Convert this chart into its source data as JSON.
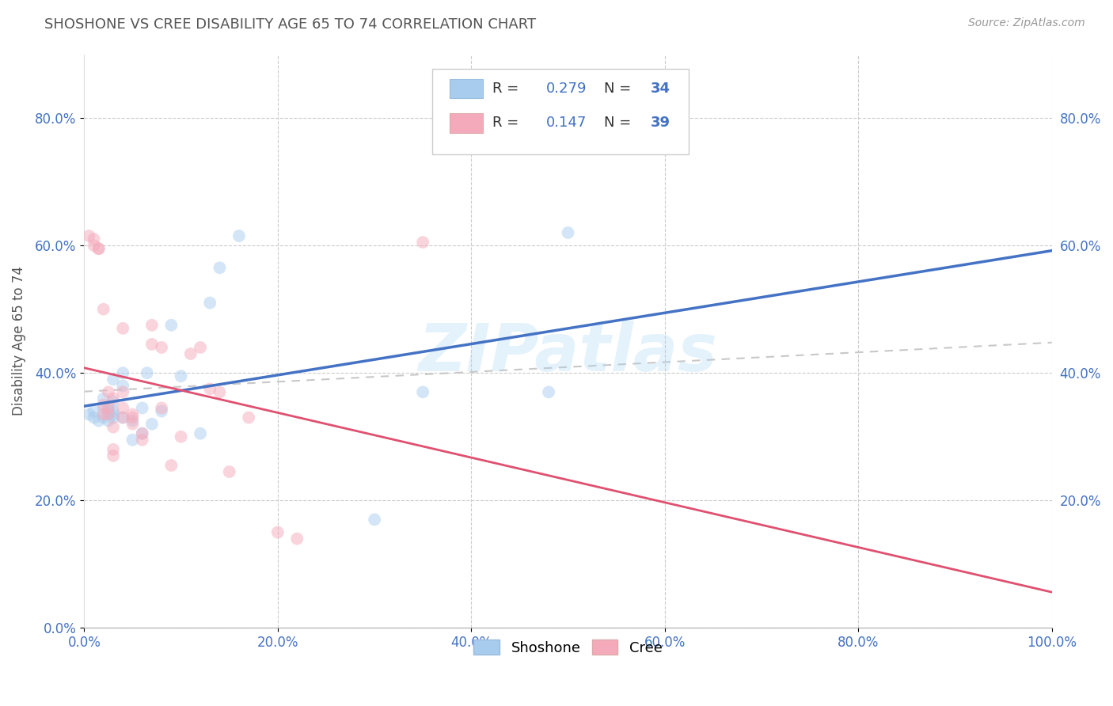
{
  "title": "SHOSHONE VS CREE DISABILITY AGE 65 TO 74 CORRELATION CHART",
  "source": "Source: ZipAtlas.com",
  "ylabel": "Disability Age 65 to 74",
  "xlim": [
    0.0,
    1.0
  ],
  "ylim": [
    0.0,
    0.9
  ],
  "xticks": [
    0.0,
    0.2,
    0.4,
    0.6,
    0.8,
    1.0
  ],
  "yticks": [
    0.0,
    0.2,
    0.4,
    0.6,
    0.8
  ],
  "shoshone_color": "#A8CCEE",
  "cree_color": "#F5AABB",
  "shoshone_line_color": "#4472C4",
  "cree_line_color": "#E05070",
  "trend_line_color": "#C8C8C8",
  "R_shoshone": 0.279,
  "N_shoshone": 34,
  "R_cree": 0.147,
  "N_cree": 39,
  "shoshone_x": [
    0.005,
    0.01,
    0.01,
    0.015,
    0.02,
    0.02,
    0.02,
    0.025,
    0.025,
    0.03,
    0.03,
    0.03,
    0.03,
    0.03,
    0.04,
    0.04,
    0.04,
    0.05,
    0.05,
    0.06,
    0.06,
    0.065,
    0.07,
    0.08,
    0.09,
    0.1,
    0.12,
    0.13,
    0.14,
    0.16,
    0.3,
    0.35,
    0.48,
    0.5
  ],
  "shoshone_y": [
    0.335,
    0.33,
    0.34,
    0.325,
    0.33,
    0.345,
    0.36,
    0.325,
    0.34,
    0.33,
    0.335,
    0.34,
    0.355,
    0.39,
    0.33,
    0.38,
    0.4,
    0.295,
    0.325,
    0.305,
    0.345,
    0.4,
    0.32,
    0.34,
    0.475,
    0.395,
    0.305,
    0.51,
    0.565,
    0.615,
    0.17,
    0.37,
    0.37,
    0.62
  ],
  "cree_x": [
    0.005,
    0.01,
    0.01,
    0.015,
    0.015,
    0.02,
    0.02,
    0.02,
    0.025,
    0.025,
    0.025,
    0.03,
    0.03,
    0.03,
    0.03,
    0.04,
    0.04,
    0.04,
    0.04,
    0.05,
    0.05,
    0.05,
    0.06,
    0.06,
    0.07,
    0.07,
    0.08,
    0.08,
    0.09,
    0.1,
    0.11,
    0.12,
    0.13,
    0.14,
    0.15,
    0.17,
    0.2,
    0.22,
    0.35
  ],
  "cree_y": [
    0.615,
    0.61,
    0.6,
    0.595,
    0.595,
    0.335,
    0.35,
    0.5,
    0.335,
    0.345,
    0.37,
    0.27,
    0.28,
    0.315,
    0.36,
    0.33,
    0.345,
    0.37,
    0.47,
    0.32,
    0.33,
    0.335,
    0.295,
    0.305,
    0.475,
    0.445,
    0.345,
    0.44,
    0.255,
    0.3,
    0.43,
    0.44,
    0.375,
    0.37,
    0.245,
    0.33,
    0.15,
    0.14,
    0.605
  ],
  "background_color": "#FFFFFF",
  "grid_color": "#CCCCCC",
  "marker_size": 130,
  "marker_alpha": 0.5
}
